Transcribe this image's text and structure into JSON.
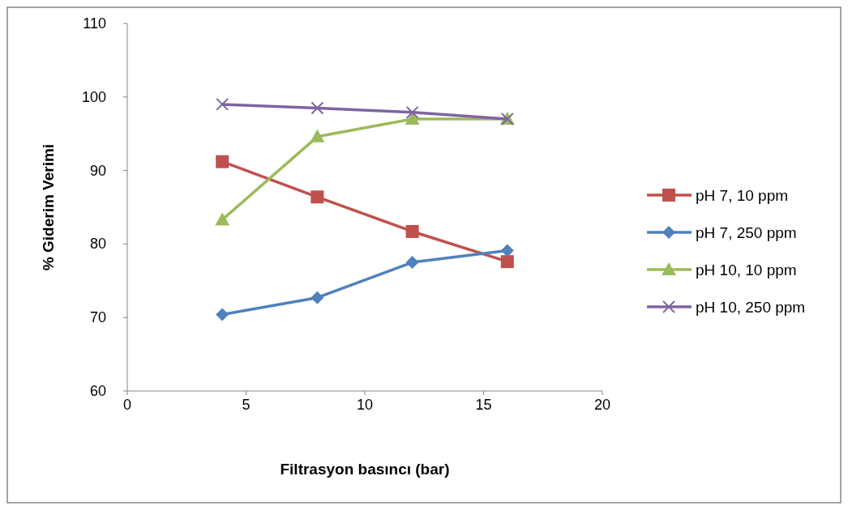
{
  "chart_data": {
    "type": "line",
    "xlabel": "Filtrasyon basıncı (bar)",
    "ylabel": "% Giderim Verimi",
    "x": [
      4,
      8,
      12,
      16
    ],
    "xlim": [
      0,
      20
    ],
    "xticks": [
      0,
      5,
      10,
      15,
      20
    ],
    "ylim": [
      60,
      110
    ],
    "yticks": [
      60,
      70,
      80,
      90,
      100,
      110
    ],
    "grid": false,
    "legend": "right",
    "series": [
      {
        "name": "pH 7, 10 ppm",
        "color": "#c0504d",
        "marker": "square",
        "values": [
          91.2,
          86.4,
          81.7,
          77.6
        ]
      },
      {
        "name": "pH 7, 250 ppm",
        "color": "#4f81bd",
        "marker": "diamond",
        "values": [
          70.4,
          72.7,
          77.5,
          79.1
        ]
      },
      {
        "name": "pH 10, 10 ppm",
        "color": "#9bbb59",
        "marker": "triangle",
        "values": [
          83.3,
          94.6,
          97.0,
          97.0
        ]
      },
      {
        "name": "pH 10, 250 ppm",
        "color": "#8064a2",
        "marker": "cross",
        "values": [
          99.0,
          98.5,
          97.9,
          97.0
        ]
      }
    ]
  }
}
